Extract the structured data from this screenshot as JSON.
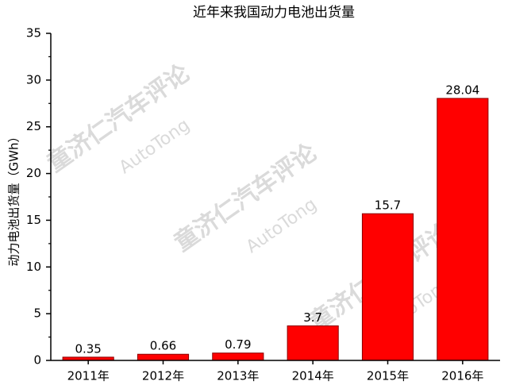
{
  "chart_data": {
    "type": "bar",
    "title": "近年来我国动力电池出货量",
    "y_label": "动力电池出货量（GWh）",
    "categories": [
      "2011年",
      "2012年",
      "2013年",
      "2014年",
      "2015年",
      "2016年"
    ],
    "values": [
      0.35,
      0.66,
      0.79,
      3.7,
      15.7,
      28.04
    ],
    "color": "#ff0000",
    "ylim": [
      0,
      35
    ],
    "yticks": [
      0,
      5,
      10,
      15,
      20,
      25,
      30,
      35
    ],
    "watermarks": [
      "童济仁汽车评论",
      "AutoTong"
    ]
  }
}
